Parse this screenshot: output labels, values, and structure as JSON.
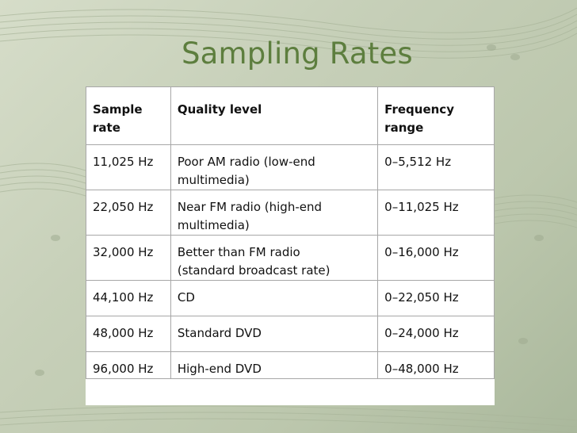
{
  "slide": {
    "title": "Sampling Rates"
  },
  "table": {
    "headers": [
      "Sample\nrate",
      "Quality level",
      "Frequency\nrange"
    ],
    "rows": [
      [
        "11,025 Hz",
        "Poor AM radio (low-end\nmultimedia)",
        "0–5,512 Hz"
      ],
      [
        "22,050 Hz",
        "Near FM radio (high-end\nmultimedia)",
        "0–11,025 Hz"
      ],
      [
        "32,000 Hz",
        "Better than FM radio\n(standard broadcast rate)",
        "0–16,000 Hz"
      ],
      [
        "44,100 Hz",
        "CD",
        "0–22,050 Hz"
      ],
      [
        "48,000 Hz",
        "Standard DVD",
        "0–24,000 Hz"
      ],
      [
        "96,000 Hz",
        "High-end DVD",
        "0–48,000 Hz"
      ]
    ]
  },
  "colors": {
    "title": "#5d7e3e",
    "background": "#c6cfb8",
    "table_border": "#a7a7a7"
  },
  "background_icon": "sheet-music-watermark"
}
